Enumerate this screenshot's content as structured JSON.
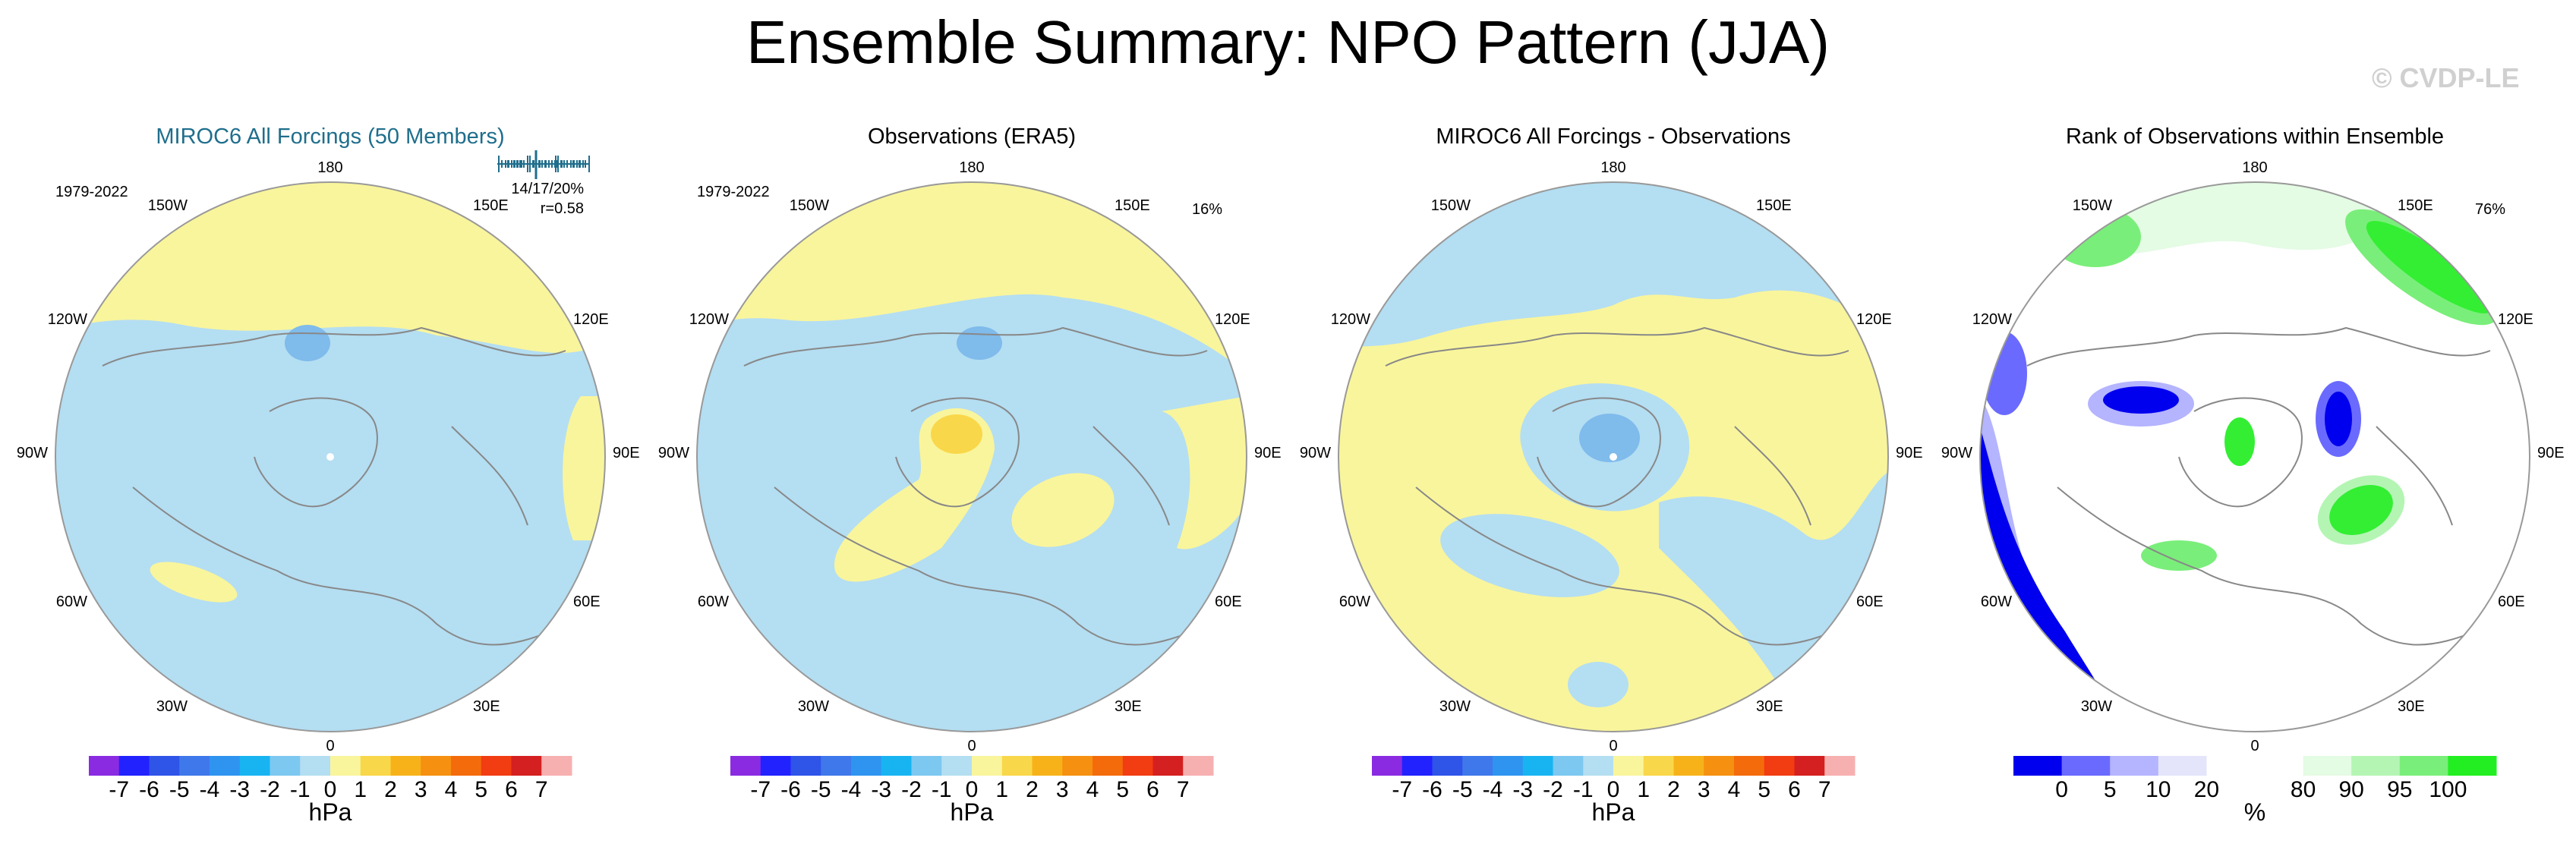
{
  "title": "Ensemble Summary: NPO Pattern (JJA)",
  "watermark": "© CVDP-LE",
  "colors": {
    "ocean_blue": "#b4def2",
    "pale_yellow": "#f9f59c",
    "deep_blue_low": "#7fbbeb",
    "yellow_high": "#f9d74a",
    "rank_dark_blue": "#0000ee",
    "rank_green": "#33ee33",
    "coastline": "#888888",
    "title_blue": "#1f6e8c"
  },
  "lon_labels": {
    "top": "180",
    "top_left": "150W",
    "top_right": "150E",
    "upper_left": "120W",
    "upper_right": "120E",
    "left": "90W",
    "right": "90E",
    "lower_left": "60W",
    "lower_right": "60E",
    "bottom_left": "30W",
    "bottom_right": "30E",
    "bottom": "0"
  },
  "panels": [
    {
      "title": "MIROC6 All Forcings (50 Members)",
      "period": "1979-2022",
      "stats_line1": "14/17/20%",
      "stats_line2": "r=0.58",
      "legend_type": "hPa"
    },
    {
      "title": "Observations (ERA5)",
      "period": "1979-2022",
      "percent": "16%",
      "legend_type": "hPa"
    },
    {
      "title": "MIROC6 All Forcings - Observations",
      "legend_type": "hPa"
    },
    {
      "title": "Rank of Observations within Ensemble",
      "percent": "76%",
      "legend_type": "rank"
    }
  ],
  "hpa_colorbar": {
    "unit": "hPa",
    "colors": [
      "#8a2be2",
      "#2222ff",
      "#2f54e8",
      "#3f78ea",
      "#2f94f0",
      "#18b4f2",
      "#7dc8f0",
      "#b4def2",
      "#f9f59c",
      "#f9d74a",
      "#f7b21a",
      "#f59010",
      "#f46b0c",
      "#f23c12",
      "#d42020",
      "#f7b0b0"
    ],
    "ticks": [
      "-7",
      "-6",
      "-5",
      "-4",
      "-3",
      "-2",
      "-1",
      "0",
      "1",
      "2",
      "3",
      "4",
      "5",
      "6",
      "7"
    ]
  },
  "rank_colorbar": {
    "unit": "%",
    "colors": [
      "#0000ee",
      "#6a6aff",
      "#b4b4ff",
      "#e4e4fb",
      "#ffffff",
      "#ffffff",
      "#e4fbe4",
      "#b4f5b4",
      "#7aee7a",
      "#22ee22"
    ],
    "ticks": [
      "0",
      "5",
      "10",
      "20",
      "80",
      "90",
      "95",
      "100"
    ]
  }
}
